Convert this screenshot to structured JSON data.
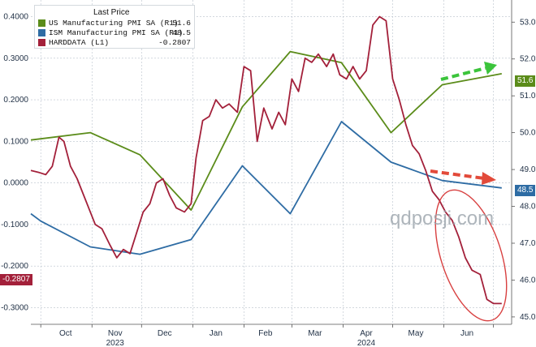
{
  "chart_data": {
    "type": "line",
    "legend": {
      "title": "Last Price",
      "placement": "top-left",
      "entries": [
        {
          "name": "US Manufacturing PMI SA  (R1)",
          "value": "51.6",
          "color": "#5b8c1a"
        },
        {
          "name": "ISM Manufacturing PMI SA  (R1)",
          "value": "48.5",
          "color": "#2e6ca4"
        },
        {
          "name": "HARDDATA  (L1)",
          "value": "-0.2807",
          "color": "#a3203a"
        }
      ]
    },
    "x_labels": [
      "Oct",
      "Nov",
      "Dec",
      "Jan",
      "Feb",
      "Mar",
      "Apr",
      "May",
      "Jun"
    ],
    "year_labels": [
      "2023",
      "2024"
    ],
    "x_range": [
      "2023-09-25",
      "2024-07-12"
    ],
    "left_axis": {
      "ylim": [
        -0.34,
        0.44
      ],
      "ticks": [
        "0.4000",
        "0.3000",
        "0.2000",
        "0.1000",
        "0.0000",
        "-0.1000",
        "-0.2000",
        "-0.3000"
      ]
    },
    "right_axis": {
      "ylim": [
        44.8,
        53.6
      ],
      "ticks": [
        "53.0",
        "52.0",
        "51.0",
        "50.0",
        "49.0",
        "48.0",
        "47.0",
        "46.0",
        "45.0"
      ]
    },
    "grid": "dotted",
    "badges": {
      "us_pmi": "51.6",
      "ism_pmi": "48.5",
      "harddata": "-0.2807"
    },
    "series": [
      {
        "name": "US Manufacturing PMI SA",
        "axis": "right",
        "color": "#5b8c1a",
        "points": [
          [
            "2023-09-25",
            49.8
          ],
          [
            "2023-10-31",
            50.0
          ],
          [
            "2023-11-30",
            49.4
          ],
          [
            "2023-12-31",
            47.9
          ],
          [
            "2024-01-31",
            50.7
          ],
          [
            "2024-02-29",
            52.2
          ],
          [
            "2024-03-31",
            51.9
          ],
          [
            "2024-04-30",
            50.0
          ],
          [
            "2024-05-31",
            51.3
          ],
          [
            "2024-07-06",
            51.6
          ]
        ]
      },
      {
        "name": "ISM Manufacturing PMI SA",
        "axis": "right",
        "color": "#2e6ca4",
        "points": [
          [
            "2023-09-25",
            47.8
          ],
          [
            "2023-10-01",
            47.6
          ],
          [
            "2023-10-31",
            46.9
          ],
          [
            "2023-11-30",
            46.7
          ],
          [
            "2023-12-31",
            47.1
          ],
          [
            "2024-01-31",
            49.1
          ],
          [
            "2024-02-29",
            47.8
          ],
          [
            "2024-03-31",
            50.3
          ],
          [
            "2024-04-30",
            49.2
          ],
          [
            "2024-05-31",
            48.7
          ],
          [
            "2024-07-06",
            48.5
          ]
        ]
      },
      {
        "name": "HARDDATA",
        "axis": "left",
        "color": "#a3203a",
        "points": [
          [
            "2023-09-25",
            0.03
          ],
          [
            "2023-09-30",
            0.025
          ],
          [
            "2023-10-04",
            0.02
          ],
          [
            "2023-10-08",
            0.04
          ],
          [
            "2023-10-12",
            0.11
          ],
          [
            "2023-10-15",
            0.1
          ],
          [
            "2023-10-19",
            0.04
          ],
          [
            "2023-10-23",
            0.01
          ],
          [
            "2023-10-27",
            -0.03
          ],
          [
            "2023-10-30",
            -0.06
          ],
          [
            "2023-11-03",
            -0.1
          ],
          [
            "2023-11-07",
            -0.11
          ],
          [
            "2023-11-12",
            -0.15
          ],
          [
            "2023-11-16",
            -0.18
          ],
          [
            "2023-11-20",
            -0.16
          ],
          [
            "2023-11-24",
            -0.17
          ],
          [
            "2023-11-28",
            -0.12
          ],
          [
            "2023-12-02",
            -0.07
          ],
          [
            "2023-12-06",
            -0.05
          ],
          [
            "2023-12-10",
            0.0
          ],
          [
            "2023-12-14",
            0.01
          ],
          [
            "2023-12-18",
            -0.03
          ],
          [
            "2023-12-22",
            -0.06
          ],
          [
            "2023-12-27",
            -0.07
          ],
          [
            "2023-12-31",
            -0.05
          ],
          [
            "2024-01-03",
            0.06
          ],
          [
            "2024-01-07",
            0.15
          ],
          [
            "2024-01-11",
            0.16
          ],
          [
            "2024-01-15",
            0.2
          ],
          [
            "2024-01-19",
            0.18
          ],
          [
            "2024-01-23",
            0.19
          ],
          [
            "2024-01-28",
            0.17
          ],
          [
            "2024-02-01",
            0.28
          ],
          [
            "2024-02-05",
            0.27
          ],
          [
            "2024-02-09",
            0.1
          ],
          [
            "2024-02-13",
            0.18
          ],
          [
            "2024-02-18",
            0.13
          ],
          [
            "2024-02-22",
            0.17
          ],
          [
            "2024-02-26",
            0.14
          ],
          [
            "2024-03-01",
            0.25
          ],
          [
            "2024-03-05",
            0.22
          ],
          [
            "2024-03-09",
            0.3
          ],
          [
            "2024-03-13",
            0.29
          ],
          [
            "2024-03-17",
            0.31
          ],
          [
            "2024-03-22",
            0.28
          ],
          [
            "2024-03-26",
            0.31
          ],
          [
            "2024-03-30",
            0.26
          ],
          [
            "2024-04-03",
            0.25
          ],
          [
            "2024-04-07",
            0.28
          ],
          [
            "2024-04-11",
            0.25
          ],
          [
            "2024-04-15",
            0.27
          ],
          [
            "2024-04-19",
            0.38
          ],
          [
            "2024-04-23",
            0.4
          ],
          [
            "2024-04-27",
            0.39
          ],
          [
            "2024-05-01",
            0.25
          ],
          [
            "2024-05-05",
            0.2
          ],
          [
            "2024-05-09",
            0.14
          ],
          [
            "2024-05-13",
            0.09
          ],
          [
            "2024-05-17",
            0.07
          ],
          [
            "2024-05-21",
            0.03
          ],
          [
            "2024-05-25",
            -0.02
          ],
          [
            "2024-05-29",
            -0.04
          ],
          [
            "2024-06-02",
            -0.07
          ],
          [
            "2024-06-06",
            -0.09
          ],
          [
            "2024-06-10",
            -0.13
          ],
          [
            "2024-06-14",
            -0.18
          ],
          [
            "2024-06-18",
            -0.21
          ],
          [
            "2024-06-23",
            -0.22
          ],
          [
            "2024-06-27",
            -0.28
          ],
          [
            "2024-07-01",
            -0.29
          ],
          [
            "2024-07-06",
            -0.29
          ]
        ]
      }
    ]
  },
  "watermark": "qdposji.com"
}
